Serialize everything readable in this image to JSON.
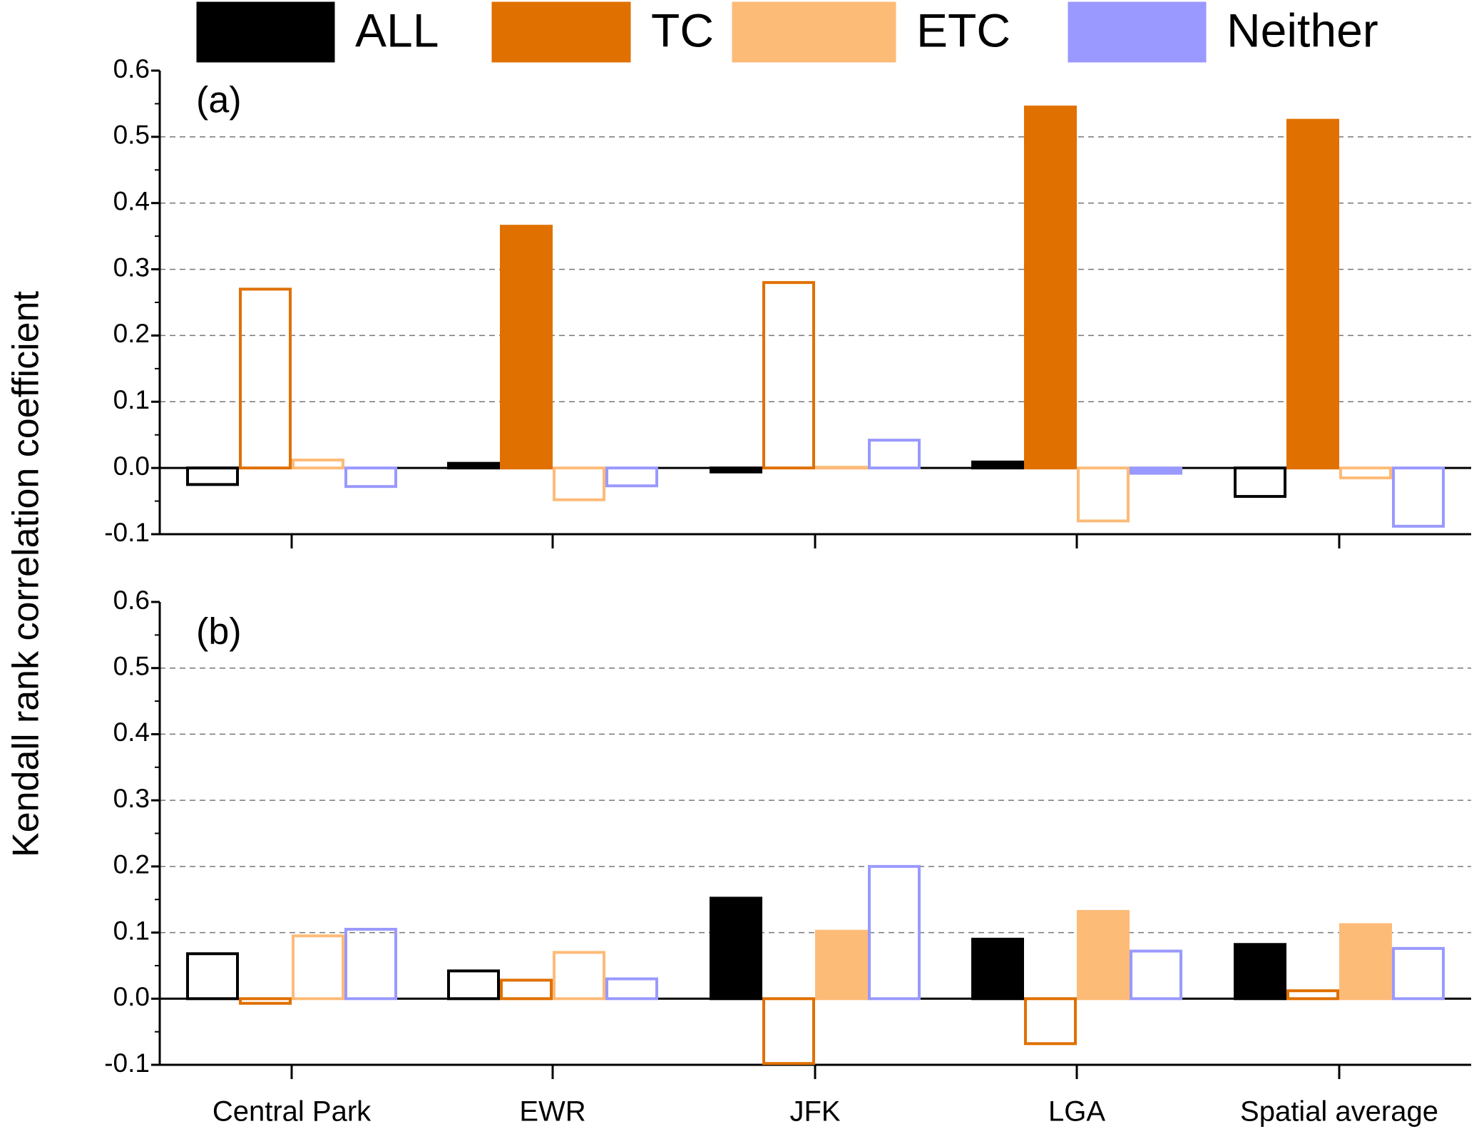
{
  "chart_data": {
    "type": "bar",
    "ylabel": "Kendall rank correlation coefficient",
    "categories": [
      "Central Park",
      "EWR",
      "JFK",
      "LGA",
      "Spatial average"
    ],
    "series": [
      {
        "name": "ALL",
        "color": "#000000"
      },
      {
        "name": "TC",
        "color": "#e07000"
      },
      {
        "name": "ETC",
        "color": "#fdbb78"
      },
      {
        "name": "Neither",
        "color": "#9999ff"
      }
    ],
    "ylim": [
      -0.1,
      0.6
    ],
    "yticks": [
      -0.1,
      {
        "value": 0,
        "label": "0.0"
      },
      0.1,
      0.2,
      0.3,
      0.4,
      0.5,
      0.6
    ],
    "grid": true,
    "panels": [
      {
        "label": "(a)",
        "series": [
          {
            "values": [
              -0.025,
              0.007,
              -0.006,
              0.009,
              -0.043
            ],
            "filled": [
              false,
              true,
              true,
              true,
              false
            ]
          },
          {
            "values": [
              0.27,
              0.365,
              0.28,
              0.545,
              0.525
            ],
            "filled": [
              false,
              true,
              false,
              true,
              true
            ]
          },
          {
            "values": [
              0.012,
              -0.048,
              0.001,
              -0.08,
              -0.015
            ],
            "filled": [
              false,
              false,
              false,
              false,
              false
            ]
          },
          {
            "values": [
              -0.028,
              -0.027,
              0.042,
              -0.008,
              -0.088
            ],
            "filled": [
              false,
              false,
              false,
              true,
              false
            ]
          }
        ]
      },
      {
        "label": "(b)",
        "series": [
          {
            "values": [
              0.068,
              0.042,
              0.152,
              0.09,
              0.082
            ],
            "filled": [
              false,
              false,
              true,
              true,
              true
            ]
          },
          {
            "values": [
              -0.007,
              0.028,
              -0.098,
              -0.068,
              0.012
            ],
            "filled": [
              false,
              false,
              false,
              false,
              false
            ]
          },
          {
            "values": [
              0.095,
              0.07,
              0.102,
              0.132,
              0.112
            ],
            "filled": [
              false,
              false,
              true,
              true,
              true
            ]
          },
          {
            "values": [
              0.105,
              0.03,
              0.2,
              0.072,
              0.076
            ],
            "filled": [
              false,
              false,
              false,
              false,
              false
            ]
          }
        ]
      }
    ]
  }
}
